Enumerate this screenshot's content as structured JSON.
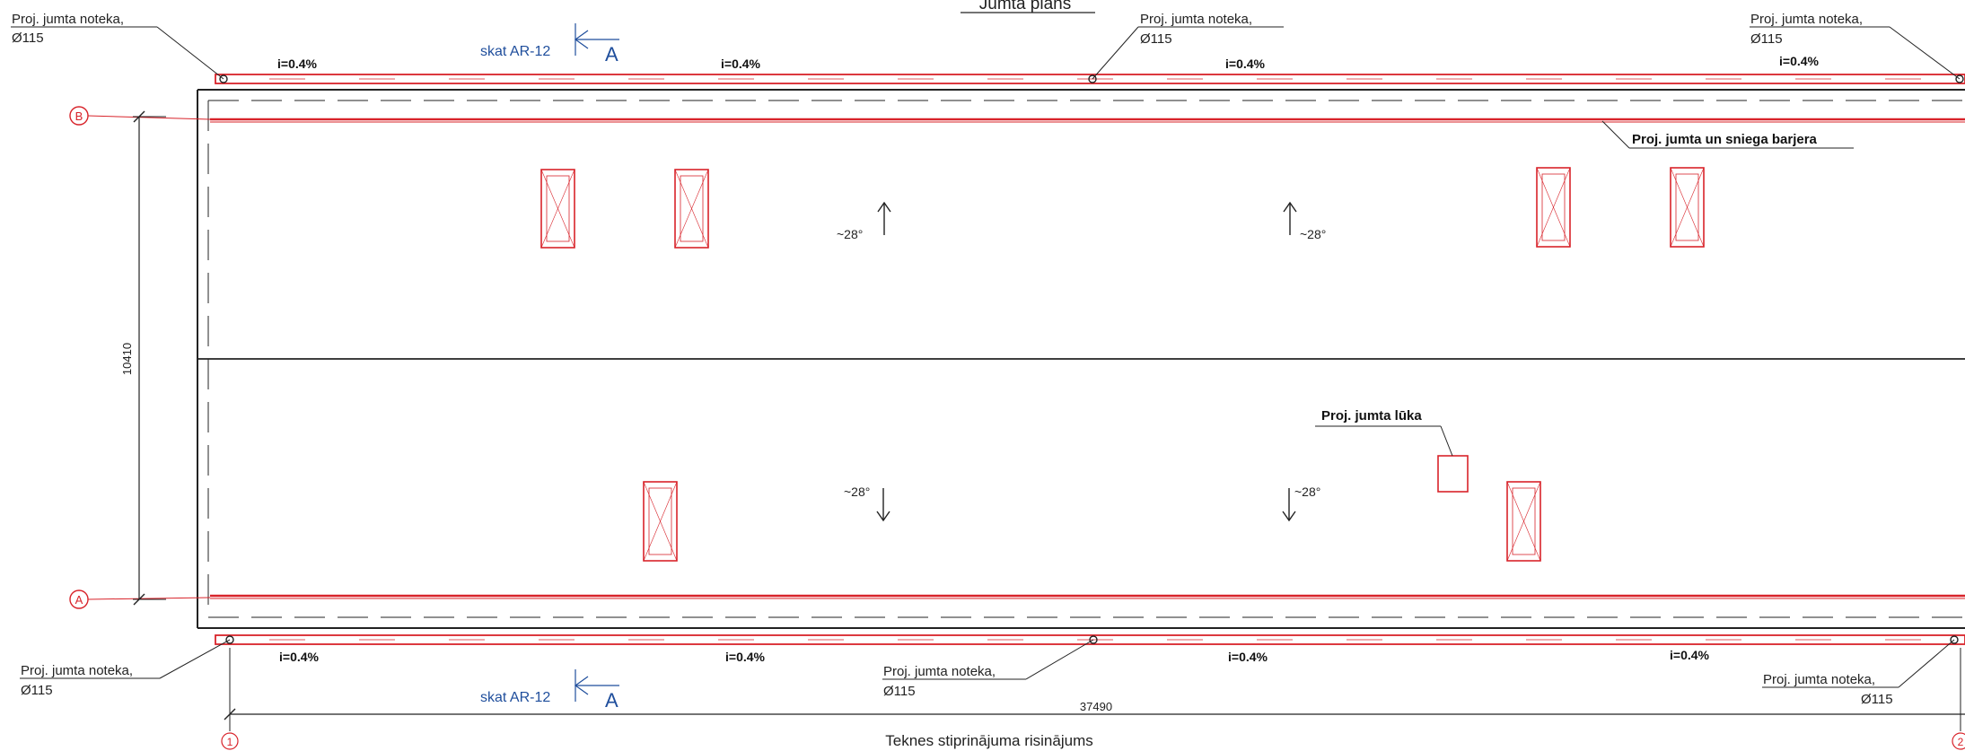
{
  "drawing": {
    "title": "Jumta plāns",
    "subtitle": "Teknes stiprinājuma risinājums",
    "colors": {
      "line": "#222222",
      "accent": "#d8232a",
      "reference": "#1f4e9c"
    }
  },
  "axes": {
    "row_labels": [
      "B",
      "A"
    ],
    "column_labels": [
      "1",
      "2"
    ]
  },
  "dimensions": {
    "width_total": "37490",
    "height_total": "10410"
  },
  "drains": {
    "label": "Proj. jumta noteka,",
    "diameter": "Ø115"
  },
  "slopes": {
    "gutter": "i=0.4%",
    "roof_up": "~28°",
    "roof_down": "~28°"
  },
  "section_refs": {
    "text": "skat AR-12",
    "letter": "A"
  },
  "annotations": {
    "snow_barrier": "Proj. jumta un sniega barjera",
    "roof_hatch": "Proj. jumta lūka"
  }
}
